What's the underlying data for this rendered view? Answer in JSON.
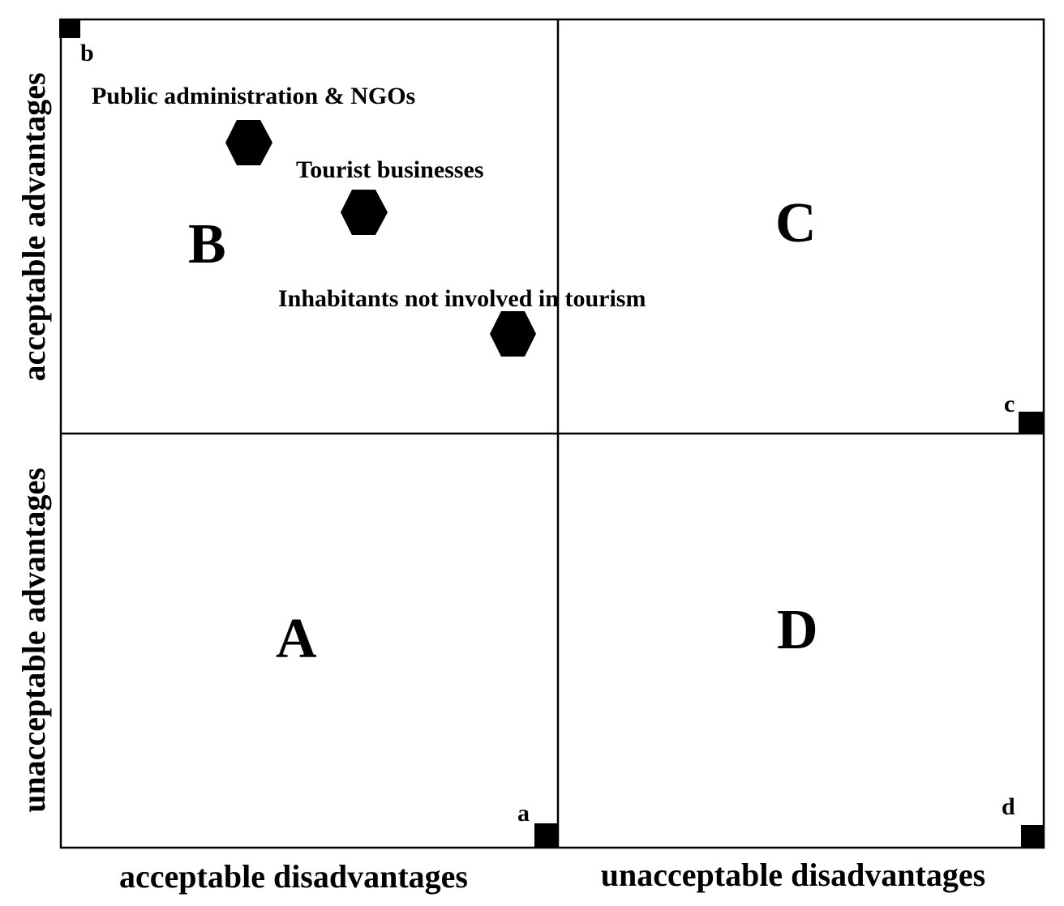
{
  "axes": {
    "left_top": "acceptable advantages",
    "left_bottom": "unacceptable advantages",
    "bottom_left": "acceptable disadvantages",
    "bottom_right": "unacceptable disadvantages"
  },
  "quadrants": {
    "B": "B",
    "C": "C",
    "A": "A",
    "D": "D"
  },
  "corners": {
    "b": "b",
    "c": "c",
    "a": "a",
    "d": "d"
  },
  "stakeholders": [
    {
      "label": "Public administration & NGOs"
    },
    {
      "label": "Tourist businesses"
    },
    {
      "label": "Inhabitants not involved in tourism"
    }
  ],
  "colors": {
    "ink": "#000000",
    "background": "#ffffff"
  }
}
